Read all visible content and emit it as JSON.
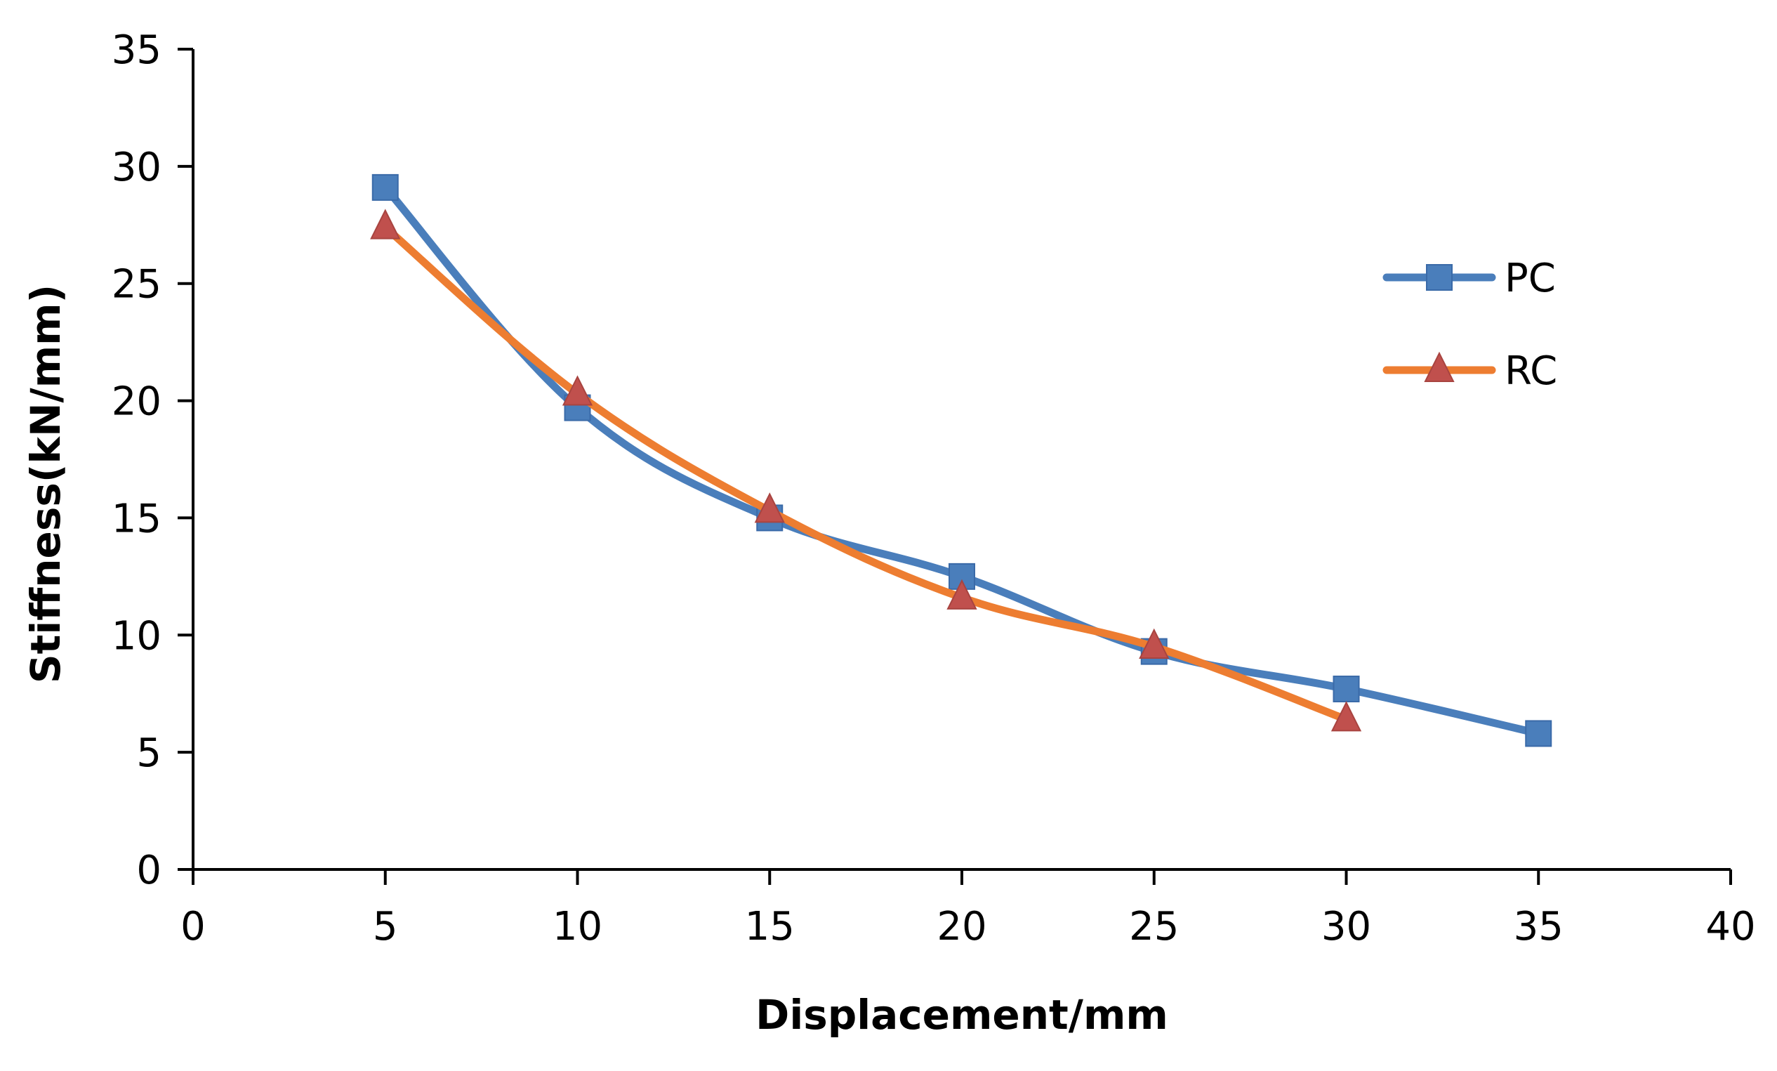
{
  "chart_data": {
    "type": "line",
    "title": "",
    "xlabel": "Displacement/mm",
    "ylabel": "Stiffness(kN/mm)",
    "xlim": [
      0,
      40
    ],
    "ylim": [
      0,
      35
    ],
    "xticks": [
      0,
      5,
      10,
      15,
      20,
      25,
      30,
      35,
      40
    ],
    "yticks": [
      0,
      5,
      10,
      15,
      20,
      25,
      30,
      35
    ],
    "grid": false,
    "legend_position": "right",
    "series": [
      {
        "name": "PC",
        "color": "#4a7ebb",
        "marker": "square",
        "x": [
          5,
          10,
          15,
          20,
          25,
          30,
          35
        ],
        "y": [
          29.1,
          19.7,
          15.0,
          12.5,
          9.3,
          7.7,
          5.8
        ]
      },
      {
        "name": "RC",
        "color": "#ed7d31",
        "marker_color": "#c0504d",
        "marker": "triangle",
        "x": [
          5,
          10,
          15,
          20,
          25,
          30
        ],
        "y": [
          27.4,
          20.3,
          15.3,
          11.6,
          9.5,
          6.4
        ]
      }
    ]
  }
}
